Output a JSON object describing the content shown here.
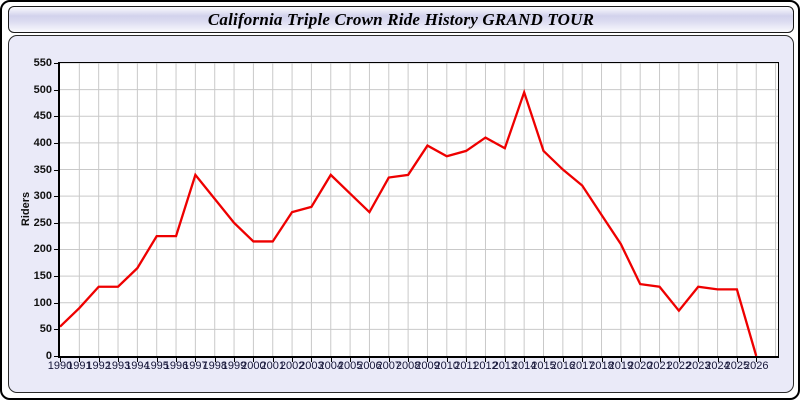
{
  "window": {
    "title": "California Triple Crown Ride History GRAND TOUR"
  },
  "chart_data": {
    "type": "line",
    "title": "California Triple Crown Ride History GRAND TOUR",
    "xlabel": "",
    "ylabel": "Riders",
    "x": [
      1990,
      1991,
      1992,
      1993,
      1994,
      1995,
      1996,
      1997,
      1998,
      1999,
      2000,
      2001,
      2002,
      2003,
      2004,
      2005,
      2006,
      2007,
      2008,
      2009,
      2010,
      2011,
      2012,
      2013,
      2014,
      2015,
      2016,
      2017,
      2018,
      2019,
      2020,
      2021,
      2022,
      2023,
      2024,
      2025,
      2026
    ],
    "series": [
      {
        "name": "Riders",
        "color": "#ee0000",
        "values": [
          55,
          90,
          130,
          130,
          165,
          225,
          225,
          340,
          295,
          250,
          215,
          215,
          270,
          280,
          340,
          305,
          270,
          335,
          340,
          395,
          375,
          385,
          410,
          390,
          495,
          385,
          350,
          320,
          265,
          210,
          135,
          130,
          85,
          130,
          125,
          125,
          0
        ]
      }
    ],
    "ylim": [
      0,
      550
    ],
    "y_tick_step": 50,
    "x_tick_step": 1,
    "grid": true,
    "legend": "none"
  },
  "colors": {
    "line": "#ee0000",
    "plot_bg": "#ffffff",
    "panel_bg": "#eaeaf8",
    "grid": "#c9c9c9",
    "axis": "#000000",
    "x_tick_label": "#17173a",
    "y_tick_label": "#111111",
    "titlebar_mid": "#d2d2ec",
    "frame": "#000000"
  }
}
